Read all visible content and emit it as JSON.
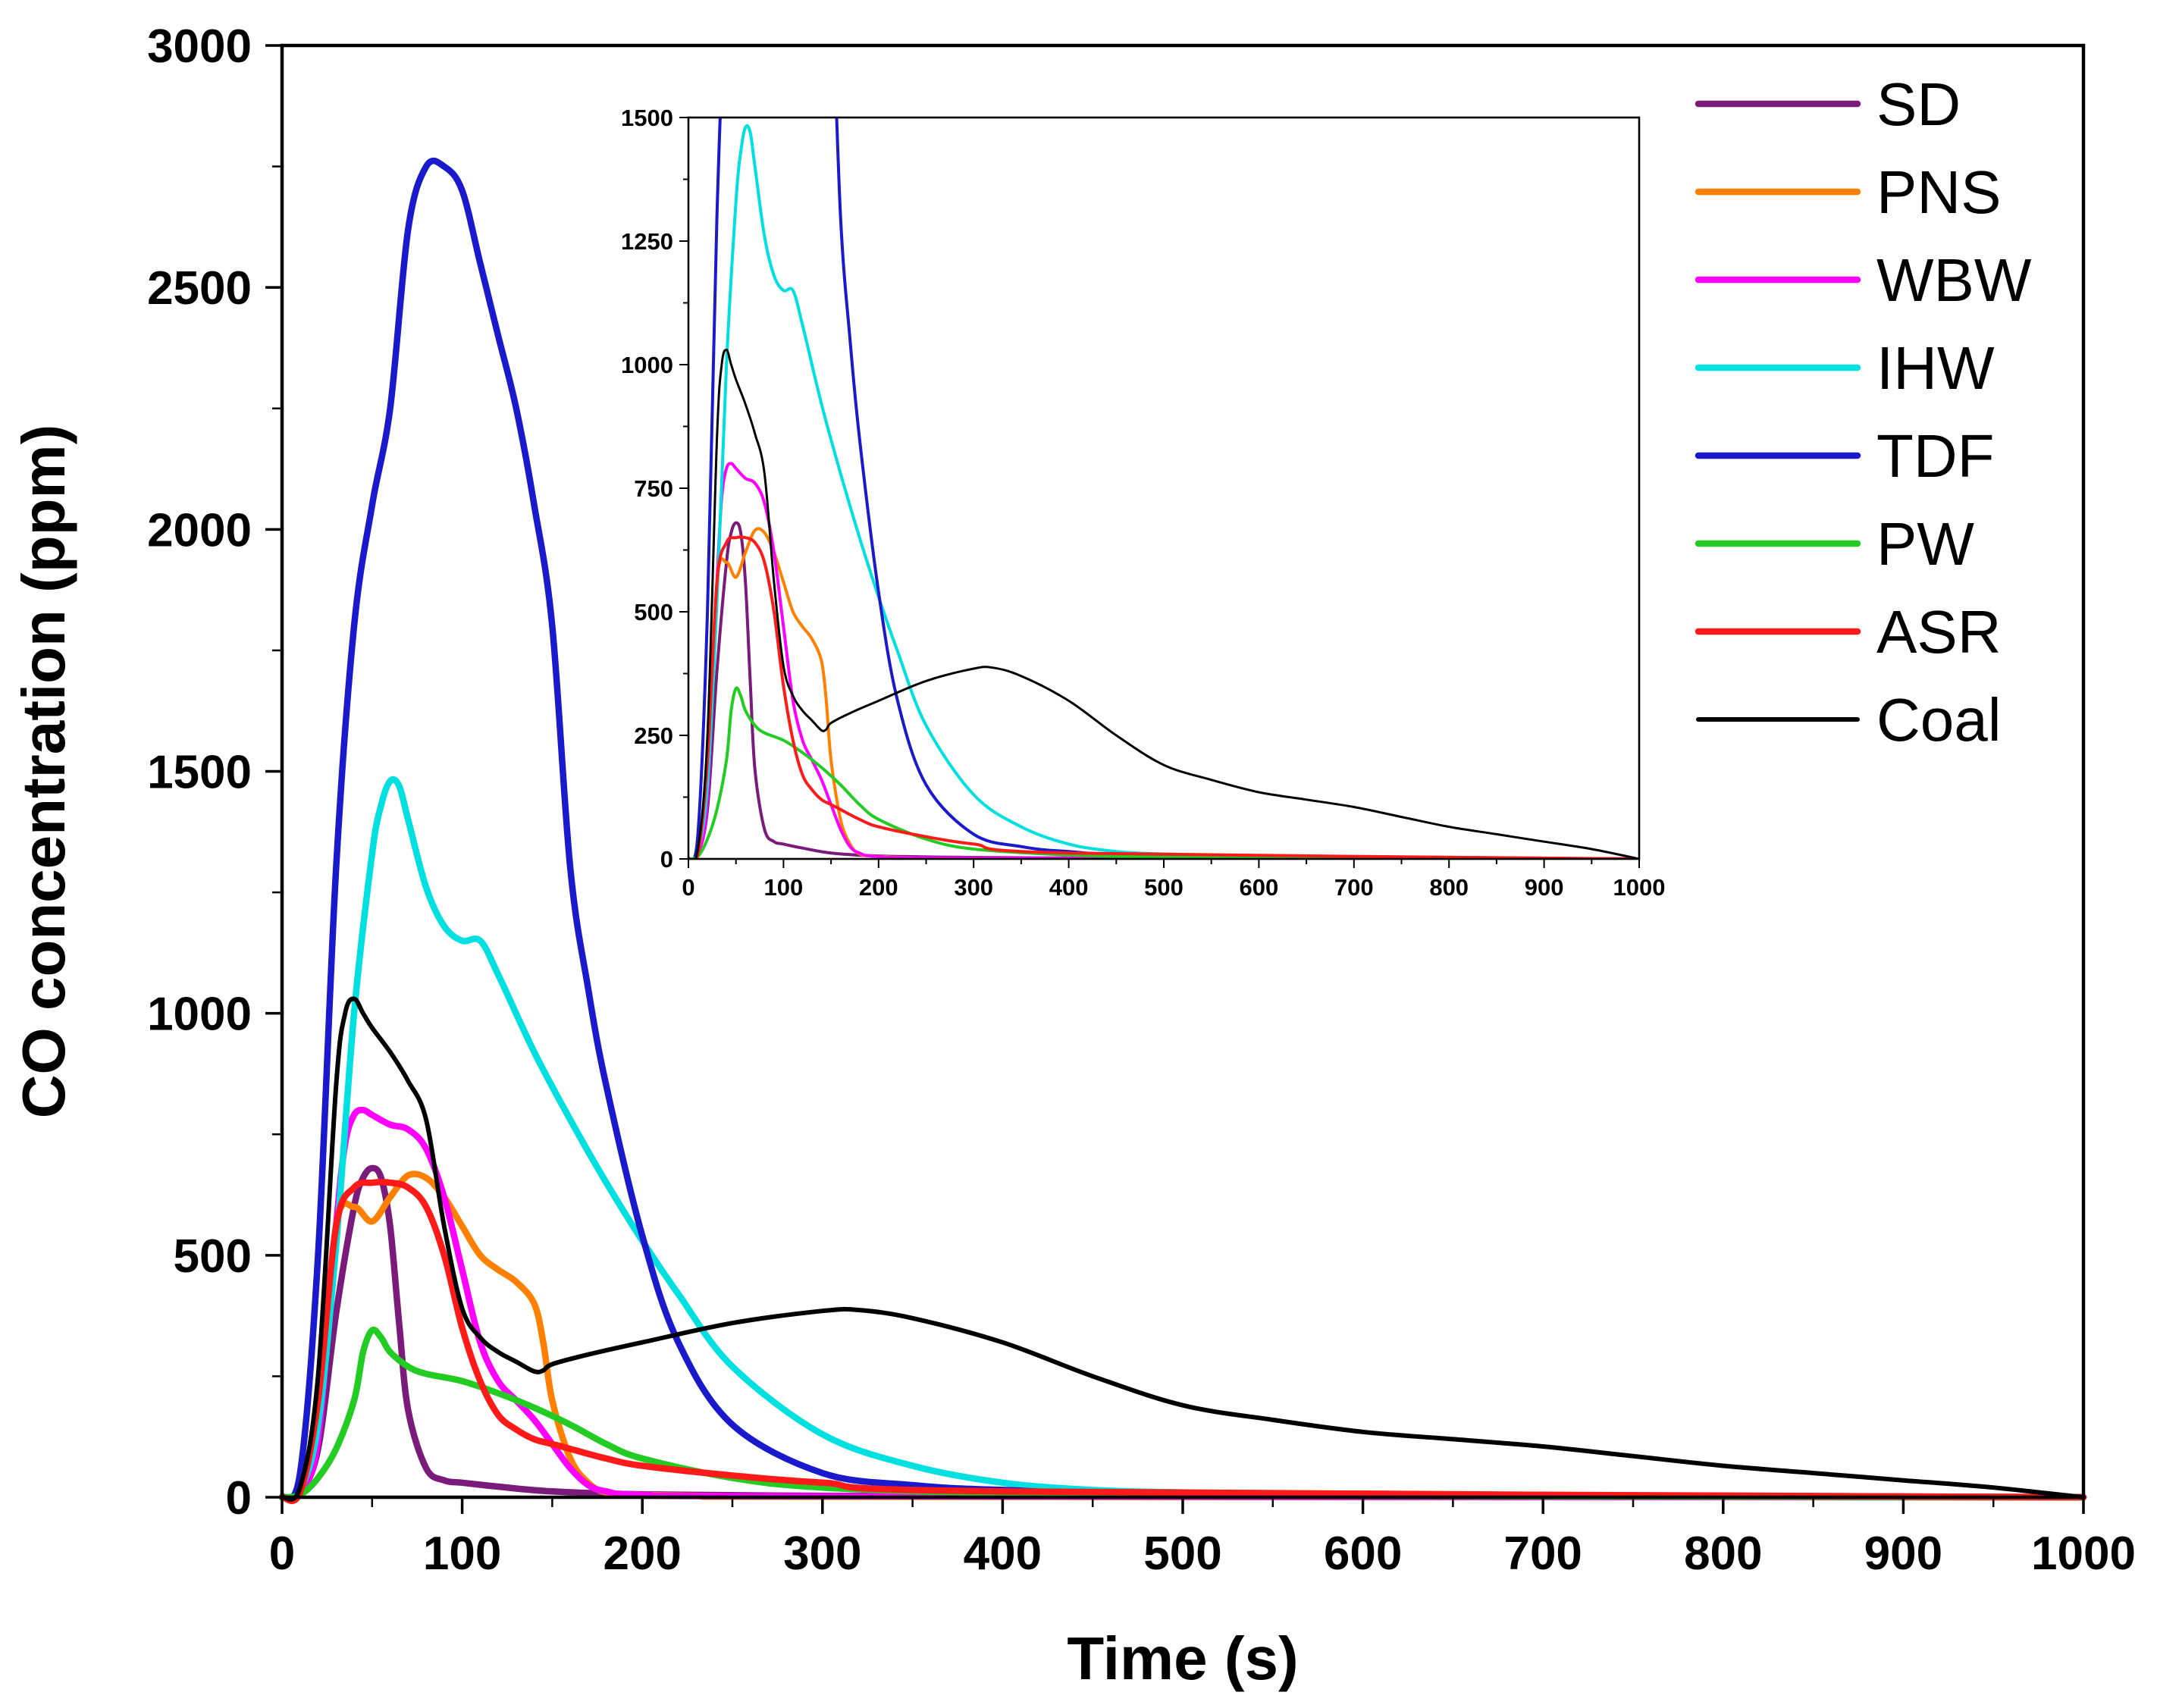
{
  "chart_data": {
    "type": "line",
    "xlabel": "Time (s)",
    "ylabel": "CO concentration (ppm)",
    "xlim": [
      0,
      1000
    ],
    "ylim": [
      0,
      3000
    ],
    "x_ticks": [
      0,
      100,
      200,
      300,
      400,
      500,
      600,
      700,
      800,
      900,
      1000
    ],
    "y_ticks": [
      0,
      500,
      1000,
      1500,
      2000,
      2500,
      3000
    ],
    "legend_position": "top-right",
    "series": [
      {
        "name": "SD",
        "color": "#7a1a7a",
        "x": [
          0,
          10,
          20,
          30,
          40,
          45,
          50,
          55,
          60,
          65,
          70,
          80,
          90,
          100,
          120,
          150,
          200,
          300,
          400,
          500,
          1000
        ],
        "y": [
          0,
          10,
          100,
          380,
          600,
          660,
          680,
          660,
          560,
          360,
          180,
          60,
          35,
          30,
          22,
          12,
          6,
          3,
          2,
          1,
          0
        ]
      },
      {
        "name": "PNS",
        "color": "#ff8000",
        "x": [
          0,
          10,
          20,
          30,
          40,
          50,
          60,
          70,
          80,
          90,
          100,
          110,
          120,
          130,
          140,
          145,
          150,
          160,
          170,
          180,
          200,
          250,
          300,
          1000
        ],
        "y": [
          0,
          10,
          150,
          560,
          600,
          570,
          620,
          665,
          660,
          620,
          560,
          500,
          470,
          445,
          400,
          320,
          200,
          80,
          30,
          10,
          5,
          2,
          1,
          0
        ]
      },
      {
        "name": "WBW",
        "color": "#ff00ff",
        "x": [
          0,
          10,
          20,
          30,
          35,
          40,
          45,
          50,
          60,
          70,
          80,
          90,
          100,
          110,
          120,
          130,
          140,
          150,
          160,
          170,
          180,
          200,
          300,
          1000
        ],
        "y": [
          0,
          10,
          120,
          560,
          730,
          790,
          800,
          790,
          770,
          760,
          720,
          620,
          470,
          320,
          240,
          200,
          160,
          110,
          60,
          25,
          12,
          5,
          2,
          0
        ]
      },
      {
        "name": "IHW",
        "color": "#00e0e0",
        "x": [
          0,
          10,
          20,
          30,
          40,
          50,
          55,
          60,
          65,
          70,
          80,
          90,
          100,
          110,
          120,
          140,
          160,
          180,
          200,
          220,
          250,
          300,
          350,
          400,
          450,
          500,
          600,
          700,
          1000
        ],
        "y": [
          0,
          15,
          150,
          520,
          1000,
          1330,
          1430,
          1480,
          1470,
          1400,
          1260,
          1180,
          1150,
          1150,
          1080,
          920,
          780,
          650,
          530,
          420,
          270,
          130,
          65,
          30,
          15,
          10,
          5,
          3,
          0
        ]
      },
      {
        "name": "TDF",
        "color": "#1a1acc",
        "x": [
          0,
          10,
          20,
          30,
          40,
          50,
          60,
          70,
          80,
          90,
          100,
          110,
          120,
          130,
          140,
          150,
          160,
          170,
          180,
          200,
          220,
          250,
          300,
          350,
          400,
          500,
          1000
        ],
        "y": [
          0,
          50,
          500,
          1300,
          1800,
          2050,
          2250,
          2620,
          2750,
          2750,
          2700,
          2550,
          2400,
          2250,
          2050,
          1800,
          1300,
          1050,
          850,
          540,
          320,
          150,
          50,
          25,
          15,
          8,
          0
        ]
      },
      {
        "name": "PW",
        "color": "#22cc22",
        "x": [
          0,
          10,
          20,
          30,
          40,
          45,
          50,
          55,
          60,
          70,
          80,
          100,
          120,
          140,
          160,
          180,
          200,
          250,
          300,
          400,
          500,
          700,
          1000
        ],
        "y": [
          0,
          5,
          40,
          100,
          200,
          300,
          345,
          330,
          300,
          270,
          255,
          240,
          215,
          185,
          150,
          110,
          80,
          40,
          20,
          8,
          4,
          2,
          0
        ]
      },
      {
        "name": "ASR",
        "color": "#ff1a1a",
        "x": [
          0,
          10,
          20,
          30,
          40,
          50,
          60,
          70,
          80,
          90,
          100,
          110,
          120,
          130,
          140,
          150,
          160,
          180,
          200,
          250,
          300,
          400,
          1000
        ],
        "y": [
          0,
          10,
          200,
          560,
          640,
          650,
          650,
          640,
          600,
          500,
          350,
          240,
          170,
          140,
          120,
          110,
          100,
          80,
          65,
          45,
          30,
          12,
          0
        ]
      },
      {
        "name": "Coal",
        "color": "#000000",
        "x": [
          0,
          10,
          20,
          30,
          35,
          40,
          45,
          50,
          60,
          70,
          80,
          90,
          100,
          110,
          120,
          130,
          140,
          145,
          150,
          170,
          200,
          250,
          300,
          320,
          350,
          400,
          450,
          500,
          550,
          600,
          650,
          700,
          750,
          800,
          850,
          900,
          950,
          1000
        ],
        "y": [
          0,
          20,
          250,
          850,
          1000,
          1030,
          1000,
          970,
          920,
          860,
          780,
          560,
          390,
          330,
          300,
          280,
          260,
          262,
          275,
          295,
          320,
          360,
          385,
          387,
          370,
          320,
          250,
          190,
          160,
          135,
          120,
          105,
          85,
          65,
          50,
          35,
          20,
          0
        ]
      }
    ],
    "inset": {
      "xlim": [
        0,
        1000
      ],
      "ylim": [
        0,
        1500
      ],
      "x_ticks": [
        0,
        100,
        200,
        300,
        400,
        500,
        600,
        700,
        800,
        900,
        1000
      ],
      "y_ticks": [
        0,
        250,
        500,
        750,
        1000,
        1250,
        1500
      ]
    }
  }
}
